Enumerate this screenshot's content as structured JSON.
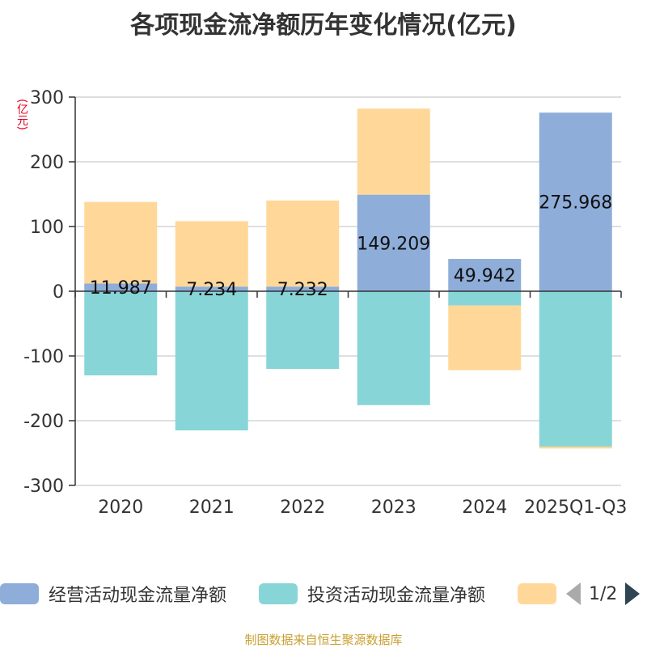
{
  "title": "各项现金流净额历年变化情况(亿元)",
  "unit_label": "(亿元)",
  "source": "制图数据来自恒生聚源数据库",
  "legend": {
    "items": [
      {
        "label": "经营活动现金流量净额",
        "color": "#8eadd9"
      },
      {
        "label": "投资活动现金流量净额",
        "color": "#88d5d8"
      },
      {
        "label": "",
        "color": "#ffd899"
      }
    ],
    "page": "1/2"
  },
  "chart_data": {
    "type": "bar",
    "stacked": true,
    "categories": [
      "2020",
      "2021",
      "2022",
      "2023",
      "2024",
      "2025Q1-Q3"
    ],
    "ylim": [
      -300,
      300
    ],
    "yticks": [
      300,
      200,
      100,
      0,
      -100,
      -200,
      -300
    ],
    "grid": true,
    "series": [
      {
        "name": "经营活动现金流量净额",
        "color": "#8eadd9",
        "values": [
          11.987,
          7.234,
          7.232,
          149.209,
          49.942,
          275.968
        ],
        "labels": [
          "11.987",
          "7.234",
          "7.232",
          "149.209",
          "49.942",
          "275.968"
        ]
      },
      {
        "name": "投资活动现金流量净额",
        "color": "#88d5d8",
        "values": [
          -130,
          -215,
          -120,
          -176,
          -22,
          -240
        ]
      },
      {
        "name": "",
        "color": "#ffd899",
        "values": [
          126,
          101,
          133,
          133,
          -100,
          -3
        ]
      }
    ]
  }
}
